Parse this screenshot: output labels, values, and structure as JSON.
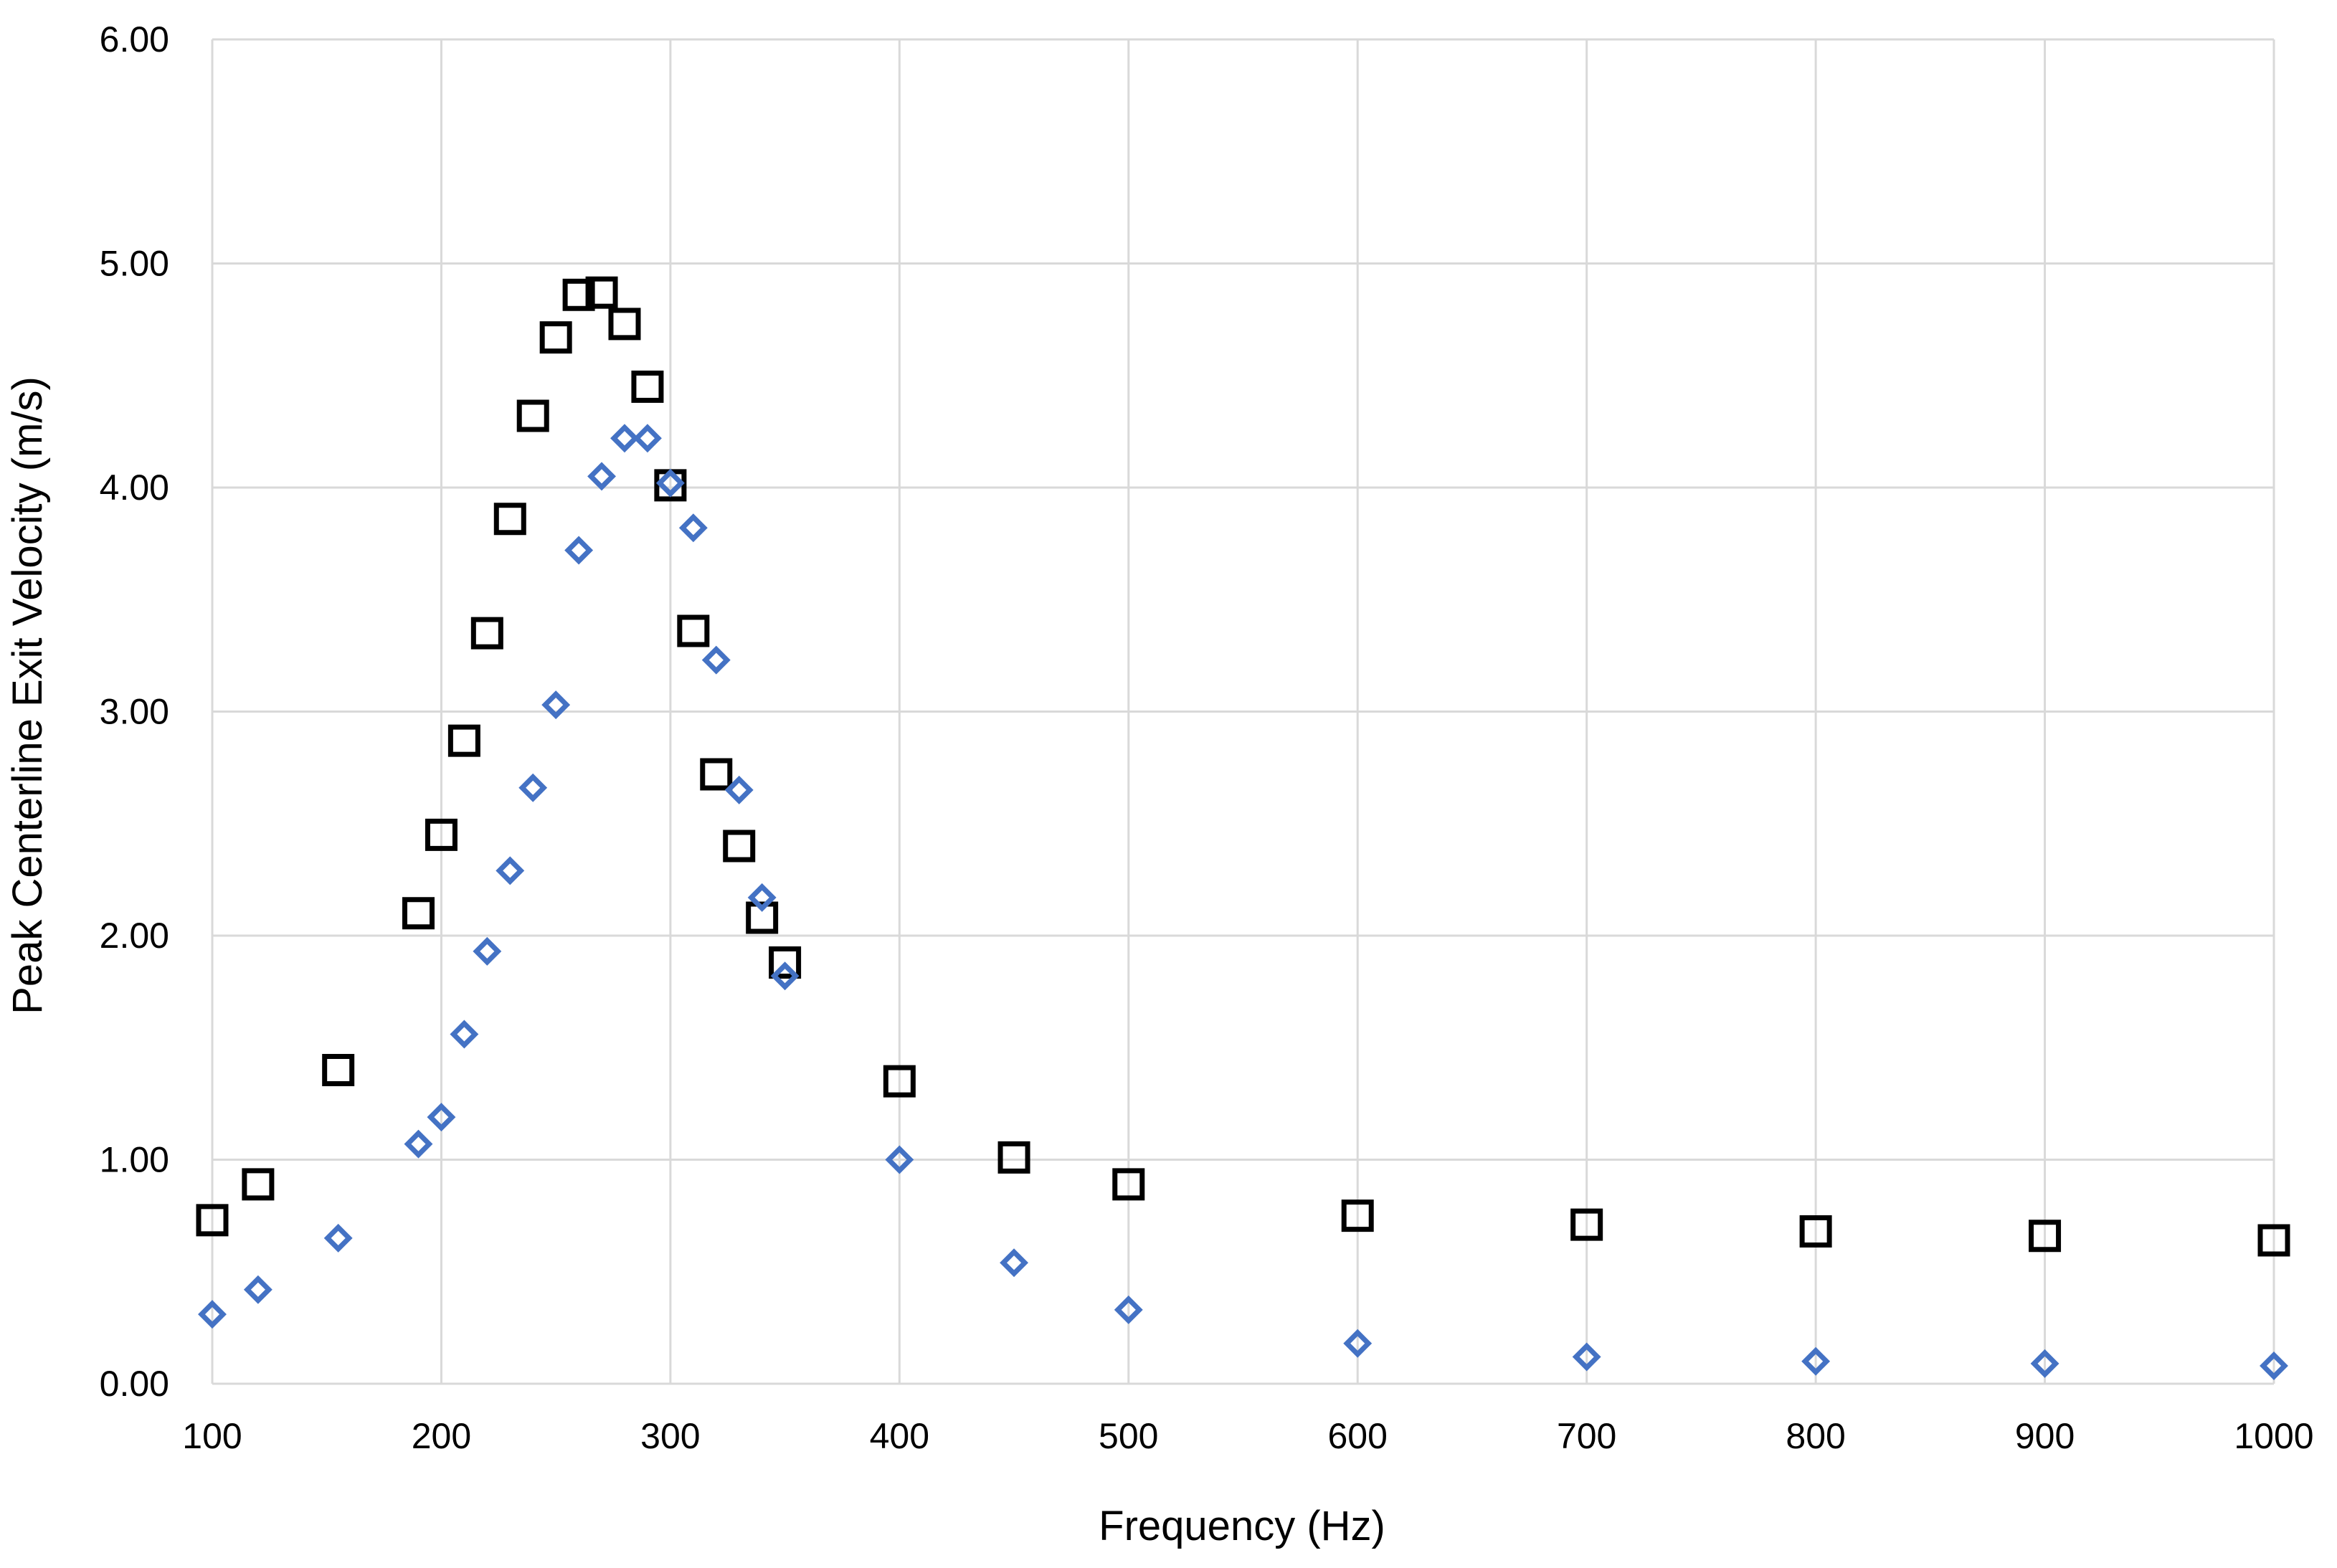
{
  "chart_data": {
    "type": "scatter",
    "title": "",
    "xlabel": "Frequency (Hz)",
    "ylabel": "Peak Centerline Exit Velocity (m/s)",
    "xlim": [
      100,
      1000
    ],
    "ylim": [
      0,
      6
    ],
    "grid": true,
    "legend": "none",
    "x_ticks": [
      "100",
      "200",
      "300",
      "400",
      "500",
      "600",
      "700",
      "800",
      "900",
      "1000"
    ],
    "y_ticks": [
      "0.00",
      "1.00",
      "2.00",
      "3.00",
      "4.00",
      "5.00",
      "6.00"
    ],
    "series": [
      {
        "marker": "square",
        "color": "#000000",
        "x": [
          100,
          120,
          155,
          190,
          200,
          210,
          220,
          230,
          240,
          250,
          260,
          270,
          280,
          290,
          300,
          310,
          320,
          330,
          340,
          350,
          400,
          450,
          500,
          600,
          700,
          800,
          900,
          1000
        ],
        "y": [
          0.73,
          0.89,
          1.4,
          2.1,
          2.45,
          2.87,
          3.35,
          3.86,
          4.32,
          4.67,
          4.86,
          4.87,
          4.73,
          4.45,
          4.01,
          3.36,
          2.72,
          2.4,
          2.08,
          1.88,
          1.35,
          1.01,
          0.89,
          0.75,
          0.71,
          0.68,
          0.66,
          0.64
        ]
      },
      {
        "marker": "diamond",
        "color": "#4472c4",
        "x": [
          100,
          120,
          155,
          190,
          200,
          210,
          220,
          230,
          240,
          250,
          260,
          270,
          280,
          290,
          300,
          310,
          320,
          330,
          340,
          350,
          400,
          450,
          500,
          600,
          700,
          800,
          900,
          1000
        ],
        "y": [
          0.31,
          0.42,
          0.65,
          1.07,
          1.19,
          1.56,
          1.93,
          2.29,
          2.66,
          3.03,
          3.72,
          4.05,
          4.22,
          4.22,
          4.02,
          3.82,
          3.23,
          2.65,
          2.17,
          1.82,
          1.0,
          0.54,
          0.33,
          0.18,
          0.12,
          0.1,
          0.09,
          0.08
        ]
      }
    ]
  }
}
